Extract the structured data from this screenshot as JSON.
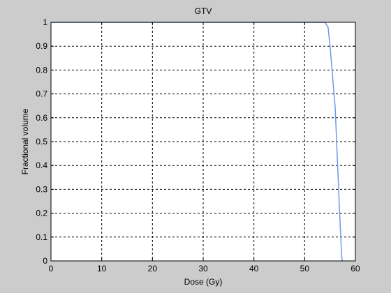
{
  "chart_data": {
    "type": "line",
    "title": "GTV",
    "xlabel": "Dose (Gy)",
    "ylabel": "Fractional volume",
    "xlim": [
      0,
      60
    ],
    "ylim": [
      0,
      1
    ],
    "xticks": [
      "0",
      "10",
      "20",
      "30",
      "40",
      "50",
      "60"
    ],
    "yticks": [
      "0",
      "0.1",
      "0.2",
      "0.3",
      "0.4",
      "0.5",
      "0.6",
      "0.7",
      "0.8",
      "0.9",
      "1"
    ],
    "grid": true,
    "grid_style": "dashed",
    "series": [
      {
        "color": "#6f9ae6",
        "x": [
          0,
          54.0,
          54.6,
          55.0,
          55.4,
          55.7,
          56.0,
          56.2,
          56.4,
          56.6,
          56.8,
          57.0,
          57.2,
          57.3,
          57.4
        ],
        "y": [
          1.0,
          1.0,
          0.98,
          0.9,
          0.8,
          0.72,
          0.65,
          0.55,
          0.45,
          0.35,
          0.25,
          0.15,
          0.06,
          0.02,
          0.0
        ]
      }
    ]
  },
  "colors": {
    "background": "#cccccc",
    "plot_area": "#ffffff",
    "line": "#6f9ae6"
  }
}
